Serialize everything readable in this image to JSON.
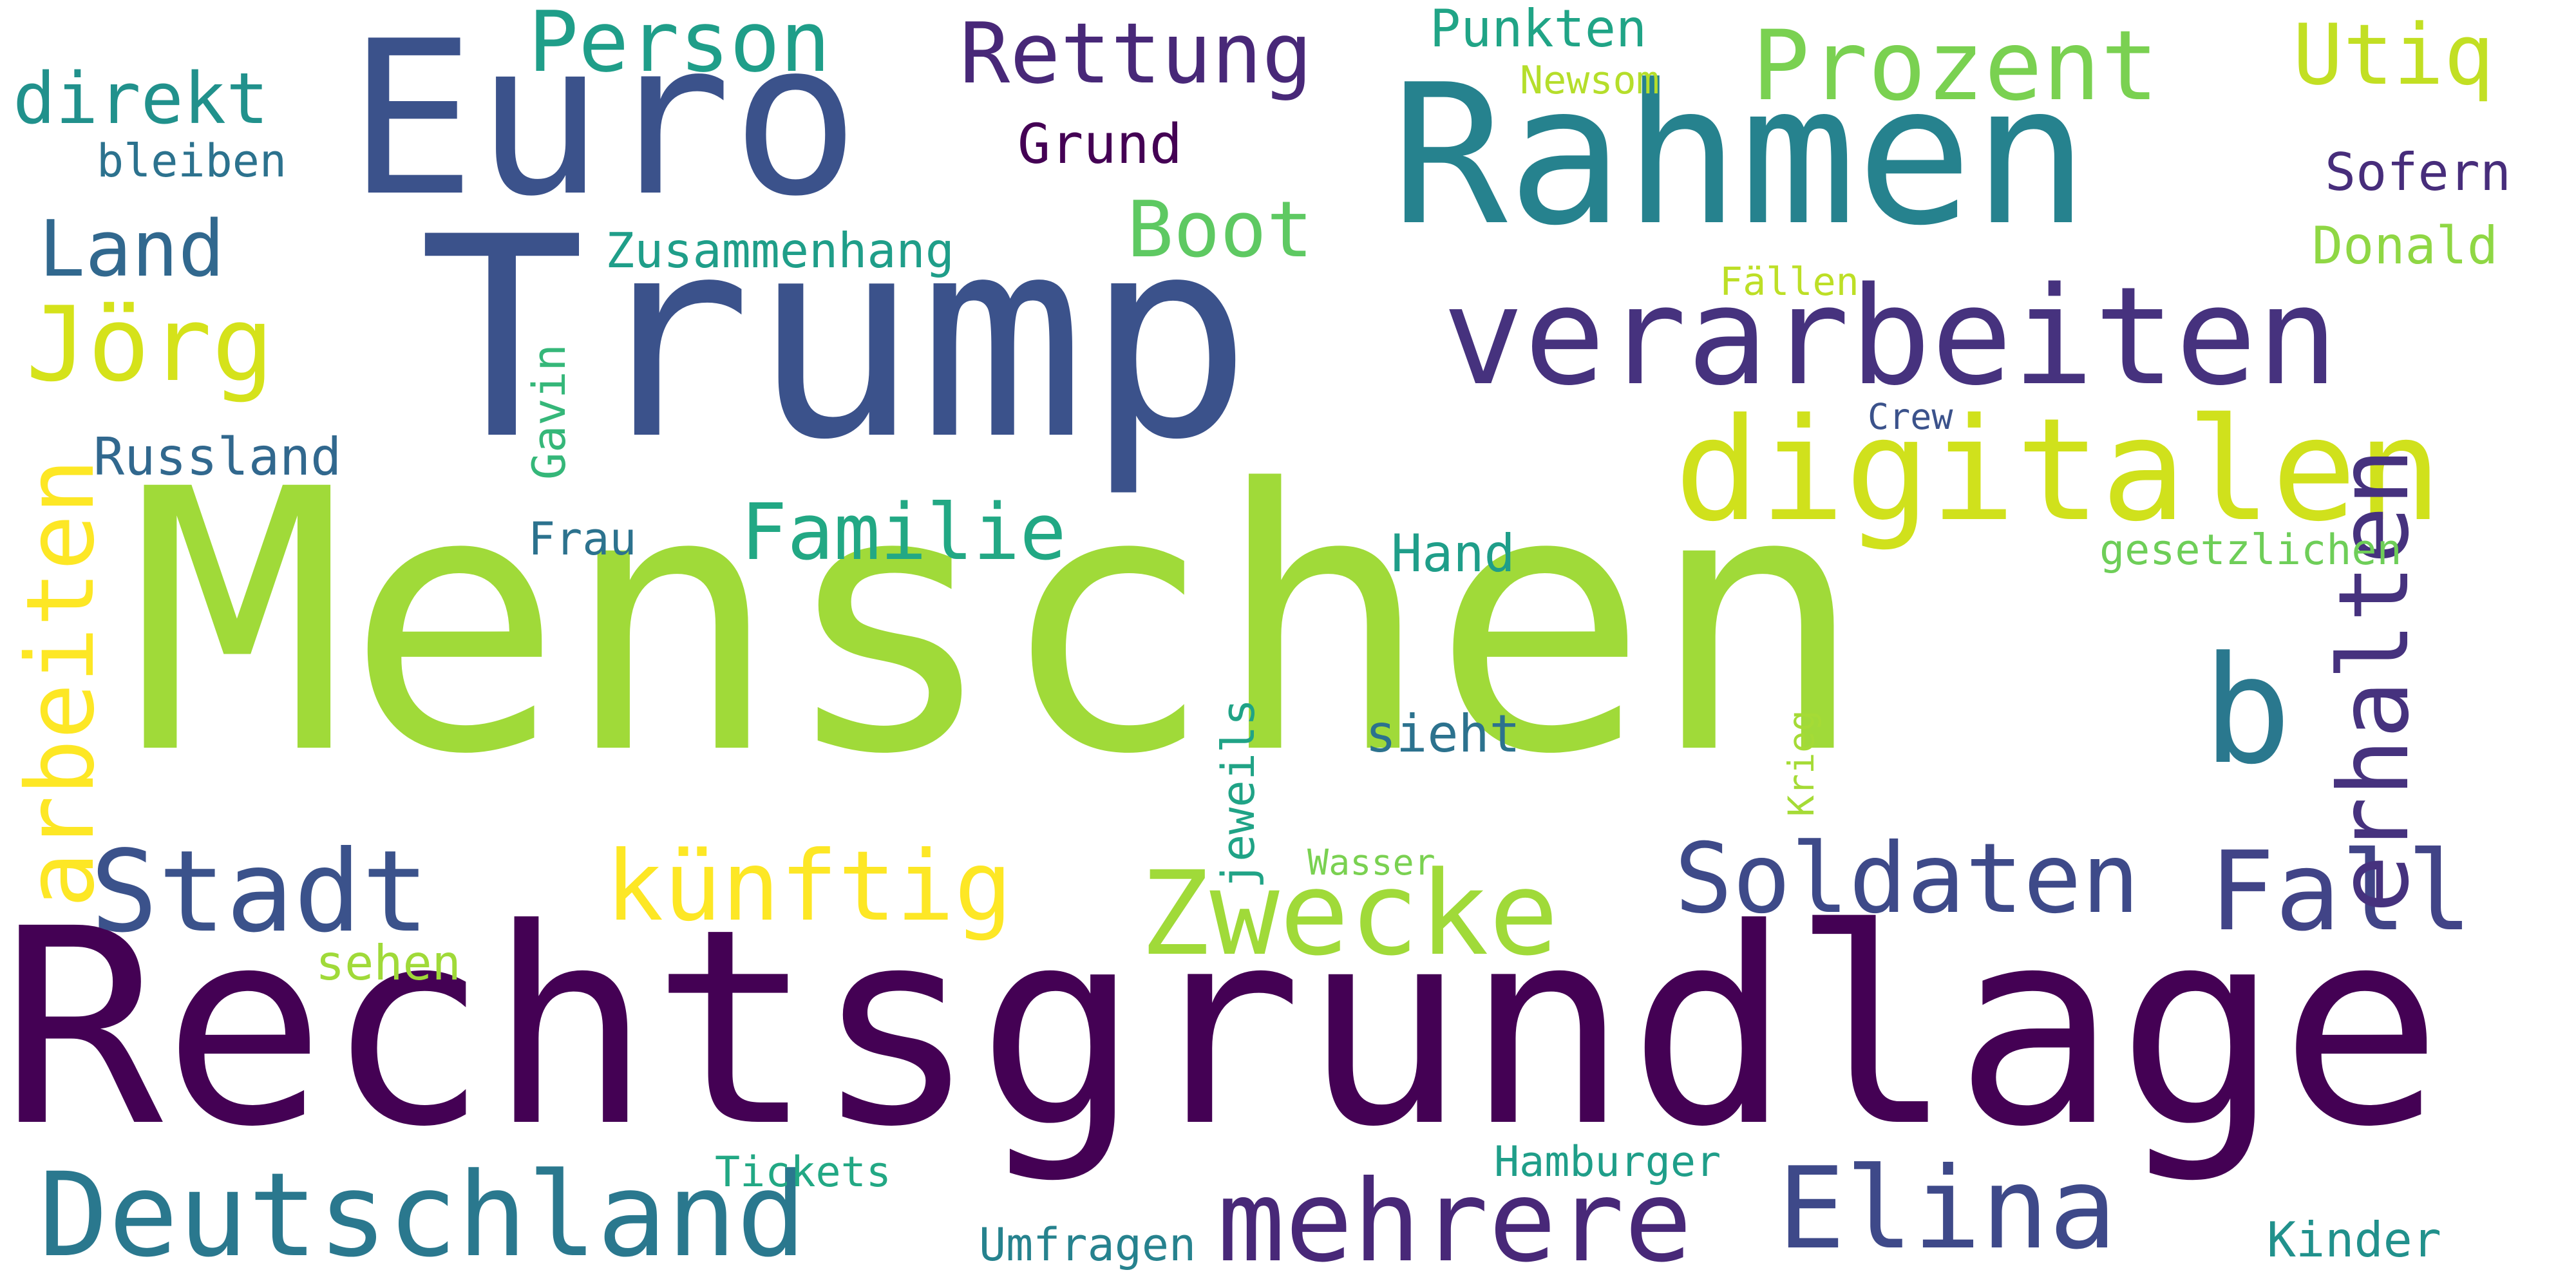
{
  "words": [
    {
      "id": "menschen",
      "text": "Menschen",
      "color": "#a0da39"
    },
    {
      "id": "rechtsgrundlage",
      "text": "Rechtsgrundlage",
      "color": "#440154"
    },
    {
      "id": "trump",
      "text": "Trump",
      "color": "#3b528b"
    },
    {
      "id": "euro",
      "text": "Euro",
      "color": "#3b528b"
    },
    {
      "id": "rahmen",
      "text": "Rahmen",
      "color": "#26828e"
    },
    {
      "id": "verarbeiten",
      "text": "verarbeiten",
      "color": "#46327e"
    },
    {
      "id": "digitalen",
      "text": "digitalen",
      "color": "#d0e11c"
    },
    {
      "id": "deutschland",
      "text": "Deutschland",
      "color": "#2a788e"
    },
    {
      "id": "mehrere",
      "text": "mehrere",
      "color": "#482878"
    },
    {
      "id": "elina",
      "text": "Elina",
      "color": "#3e4989"
    },
    {
      "id": "zwecke",
      "text": "Zwecke",
      "color": "#a0da39"
    },
    {
      "id": "fall",
      "text": "Fall",
      "color": "#414487"
    },
    {
      "id": "stadt",
      "text": "Stadt",
      "color": "#3b528b"
    },
    {
      "id": "soldaten",
      "text": "Soldaten",
      "color": "#3e4a89"
    },
    {
      "id": "kuenftig",
      "text": "künftig",
      "color": "#fde725"
    },
    {
      "id": "b",
      "text": "b",
      "color": "#2a788e"
    },
    {
      "id": "erhalten",
      "text": "erhalten",
      "color": "#46327e"
    },
    {
      "id": "arbeiten",
      "text": "arbeiten",
      "color": "#fde725"
    },
    {
      "id": "prozent",
      "text": "Prozent",
      "color": "#7ad151"
    },
    {
      "id": "joerg",
      "text": "Jörg",
      "color": "#d5e21a"
    },
    {
      "id": "familie",
      "text": "Familie",
      "color": "#22a884"
    },
    {
      "id": "person",
      "text": "Person",
      "color": "#1f9e89"
    },
    {
      "id": "rettung",
      "text": "Rettung",
      "color": "#482878"
    },
    {
      "id": "utiq",
      "text": "Utiq",
      "color": "#c2df23"
    },
    {
      "id": "boot",
      "text": "Boot",
      "color": "#5ec962"
    },
    {
      "id": "land",
      "text": "Land",
      "color": "#31688e"
    },
    {
      "id": "direkt",
      "text": "direkt",
      "color": "#21918c"
    },
    {
      "id": "zusammenhang",
      "text": "Zusammenhang",
      "color": "#1f9e89"
    },
    {
      "id": "russland",
      "text": "Russland",
      "color": "#31688e"
    },
    {
      "id": "grund",
      "text": "Grund",
      "color": "#440154"
    },
    {
      "id": "sofern",
      "text": "Sofern",
      "color": "#472d7b"
    },
    {
      "id": "donald",
      "text": "Donald",
      "color": "#8fd744"
    },
    {
      "id": "hand",
      "text": "Hand",
      "color": "#1f9e89"
    },
    {
      "id": "sieht",
      "text": "sieht",
      "color": "#2c728e"
    },
    {
      "id": "jeweils",
      "text": "jeweils",
      "color": "#20a386"
    },
    {
      "id": "gavin",
      "text": "Gavin",
      "color": "#35b779"
    },
    {
      "id": "kinder",
      "text": "Kinder",
      "color": "#21918c"
    },
    {
      "id": "bleiben",
      "text": "bleiben",
      "color": "#2c728e"
    },
    {
      "id": "punkten",
      "text": "Punkten",
      "color": "#20a486"
    },
    {
      "id": "frau",
      "text": "Frau",
      "color": "#2c728e"
    },
    {
      "id": "hamburger",
      "text": "Hamburger",
      "color": "#1f9e89"
    },
    {
      "id": "umfragen",
      "text": "Umfragen",
      "color": "#26828e"
    },
    {
      "id": "tickets",
      "text": "Tickets",
      "color": "#22a884"
    },
    {
      "id": "gesetzlichen",
      "text": "gesetzlichen",
      "color": "#6ece58"
    },
    {
      "id": "sehen",
      "text": "sehen",
      "color": "#a0da39"
    },
    {
      "id": "newsom",
      "text": "Newsom",
      "color": "#b5de2b"
    },
    {
      "id": "crew",
      "text": "Crew",
      "color": "#3b528b"
    },
    {
      "id": "faellen",
      "text": "Fällen",
      "color": "#bddf26"
    },
    {
      "id": "krieg",
      "text": "Krieg",
      "color": "#a5db36"
    },
    {
      "id": "wasser",
      "text": "Wasser",
      "color": "#7ad151"
    }
  ]
}
